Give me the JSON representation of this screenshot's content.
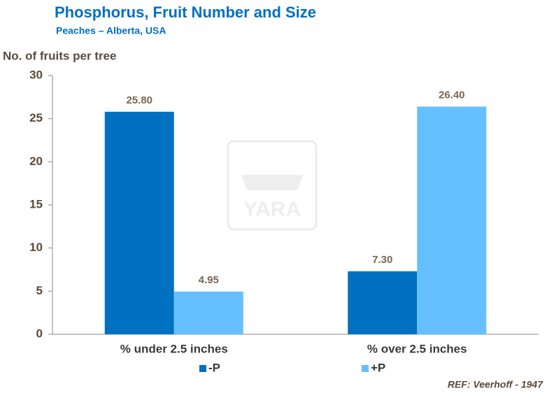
{
  "chart_data": {
    "type": "bar",
    "title": "Phosphorus, Fruit Number and Size",
    "subtitle": "Peaches – Alberta, USA",
    "y_label": "No. of fruits per tree",
    "note": "REF: Veerhoff - 1947",
    "watermark": "YARA",
    "categories": [
      "% under 2.5 inches",
      "% over 2.5 inches"
    ],
    "series": [
      {
        "name": "-P",
        "color": "#0070c0",
        "values": [
          25.8,
          7.3
        ],
        "value_labels": [
          "25.80",
          "7.30"
        ]
      },
      {
        "name": "+P",
        "color": "#66bfff",
        "values": [
          4.95,
          26.4
        ],
        "value_labels": [
          "4.95",
          "26.40"
        ]
      }
    ],
    "ylim": [
      0,
      30
    ],
    "yticks": [
      0,
      5,
      10,
      15,
      20,
      25,
      30
    ],
    "grid": false,
    "legend": "bottom"
  }
}
